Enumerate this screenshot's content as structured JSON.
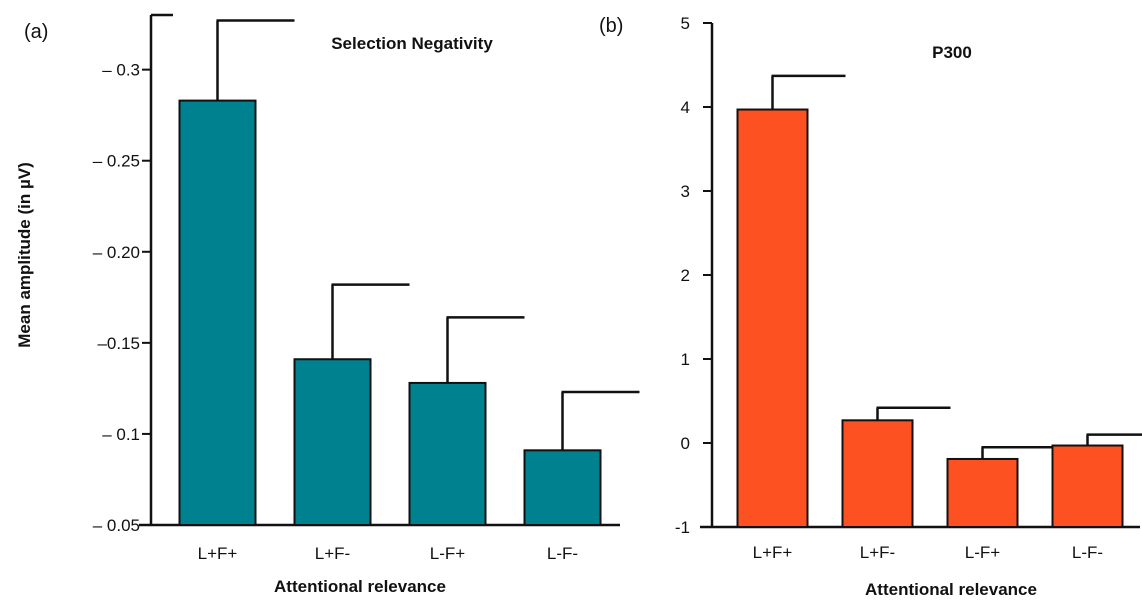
{
  "chart_data": [
    {
      "type": "bar",
      "panel_label": "(a)",
      "title": "Selection Negativity",
      "xlabel": "Attentional relevance",
      "ylabel": "Mean amplitude (in µV)",
      "categories": [
        "L+F+",
        "L+F-",
        "L-F+",
        "L-F-"
      ],
      "values": [
        -0.283,
        -0.141,
        -0.128,
        -0.091
      ],
      "error": [
        0.044,
        0.041,
        0.036,
        0.032
      ],
      "ylim": [
        -0.05,
        -0.33
      ],
      "yticks": [
        -0.3,
        -0.25,
        -0.2,
        -0.15,
        -0.1,
        -0.05
      ],
      "ytick_labels": [
        "– 0.3",
        "– 0.25",
        "– 0.20",
        "–0.15",
        "– 0.1",
        "– 0.05"
      ],
      "color": "#00818f",
      "grid": false
    },
    {
      "type": "bar",
      "panel_label": "(b)",
      "title": "P300",
      "xlabel": "Attentional relevance",
      "ylabel": "",
      "categories": [
        "L+F+",
        "L+F-",
        "L-F+",
        "L-F-"
      ],
      "values": [
        3.97,
        0.27,
        -0.19,
        -0.03
      ],
      "error": [
        0.4,
        0.15,
        0.14,
        0.13
      ],
      "ylim": [
        -1,
        5
      ],
      "yticks": [
        5,
        4,
        3,
        2,
        1,
        0,
        -1
      ],
      "ytick_labels": [
        "5",
        "4",
        "3",
        "2",
        "1",
        "0",
        "-1"
      ],
      "color": "#fe5122",
      "grid": false
    }
  ]
}
